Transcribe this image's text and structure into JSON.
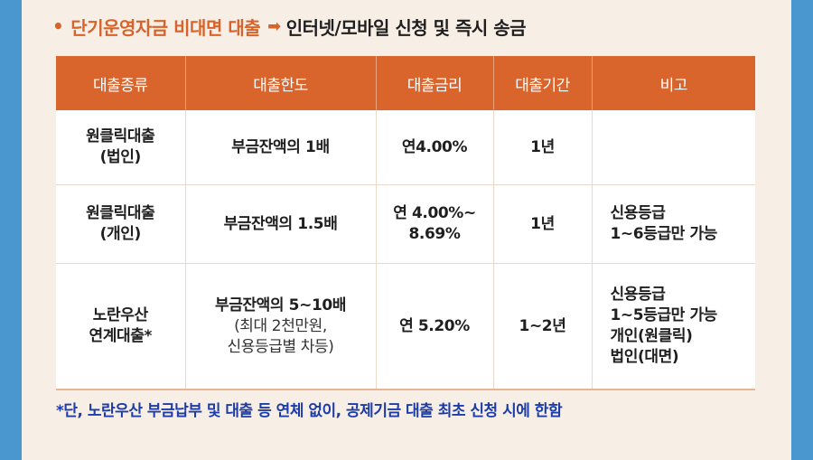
{
  "heading": {
    "bullet": "•",
    "title": "단기운영자금 비대면 대출",
    "arrow": "➡",
    "subtitle": "인터넷/모바일 신청 및 즉시 송금"
  },
  "table": {
    "headers": [
      "대출종류",
      "대출한도",
      "대출금리",
      "대출기간",
      "비고"
    ],
    "rows": [
      {
        "type": [
          "원클릭대출",
          "(법인)"
        ],
        "limit": [
          "부금잔액의 1배"
        ],
        "rate": [
          "연4.00%"
        ],
        "term": "1년",
        "note": []
      },
      {
        "type": [
          "원클릭대출",
          "(개인)"
        ],
        "limit": [
          "부금잔액의 1.5배"
        ],
        "rate": [
          "연 4.00%~",
          "8.69%"
        ],
        "term": "1년",
        "note": [
          "신용등급",
          "1~6등급만 가능"
        ]
      },
      {
        "type": [
          "노란우산",
          "연계대출*"
        ],
        "limit": [
          "부금잔액의 5~10배"
        ],
        "limit_sub": [
          "(최대 2천만원,",
          "신용등급별 차등)"
        ],
        "rate": [
          "연 5.20%"
        ],
        "term": "1~2년",
        "note": [
          "신용등급",
          "1~5등급만 가능",
          "개인(원클릭)",
          "법인(대면)"
        ]
      }
    ]
  },
  "footnote": "*단, 노란우산 부금납부 및 대출 등 연체 없이, 공제기금 대출 최초 신청 시에 한함"
}
